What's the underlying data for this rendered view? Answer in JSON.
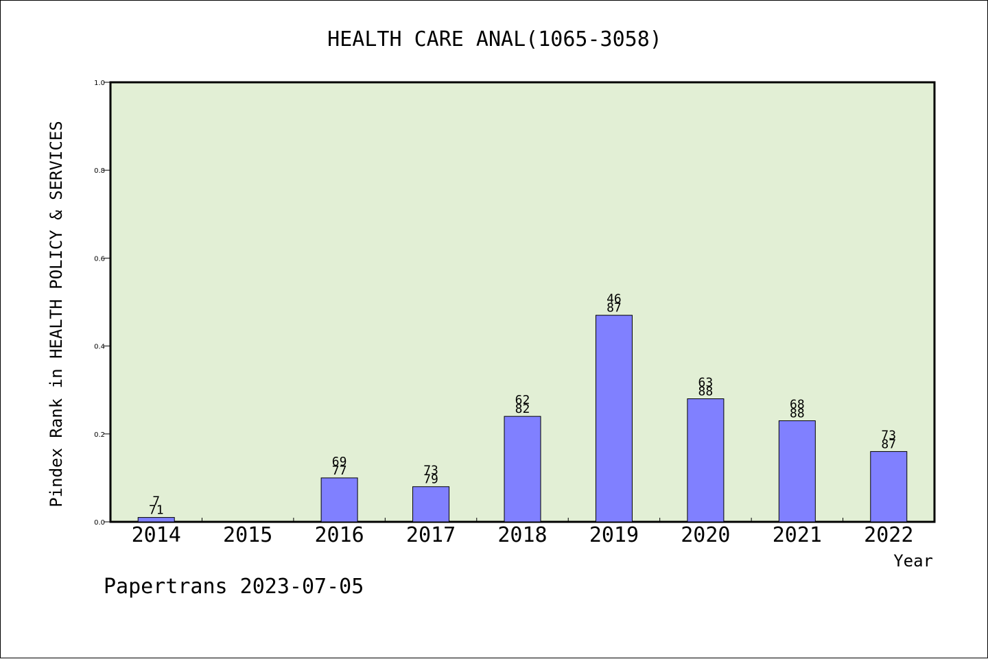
{
  "chart_data": {
    "type": "bar",
    "title": "HEALTH CARE ANAL(1065-3058)",
    "xlabel": "Year",
    "ylabel": "Pindex Rank in HEALTH POLICY & SERVICES",
    "footer": "Papertrans 2023-07-05",
    "categories": [
      "2014",
      "2015",
      "2016",
      "2017",
      "2018",
      "2019",
      "2020",
      "2021",
      "2022"
    ],
    "values": [
      0.01,
      0,
      0.1,
      0.08,
      0.24,
      0.47,
      0.28,
      0.23,
      0.16
    ],
    "labels": [
      {
        "top": "7",
        "bottom": "71"
      },
      {
        "top": "",
        "bottom": ""
      },
      {
        "top": "69",
        "bottom": "77"
      },
      {
        "top": "73",
        "bottom": "79"
      },
      {
        "top": "62",
        "bottom": "82"
      },
      {
        "top": "46",
        "bottom": "87"
      },
      {
        "top": "63",
        "bottom": "88"
      },
      {
        "top": "68",
        "bottom": "88"
      },
      {
        "top": "73",
        "bottom": "87"
      }
    ],
    "ylim": [
      0,
      1.0
    ],
    "yticks": [
      "0.0",
      "0.2",
      "0.4",
      "0.6",
      "0.8",
      "1.0"
    ],
    "grid": false,
    "colors": {
      "bar": "#8080ff",
      "plot_background": "#e2efd5"
    }
  }
}
